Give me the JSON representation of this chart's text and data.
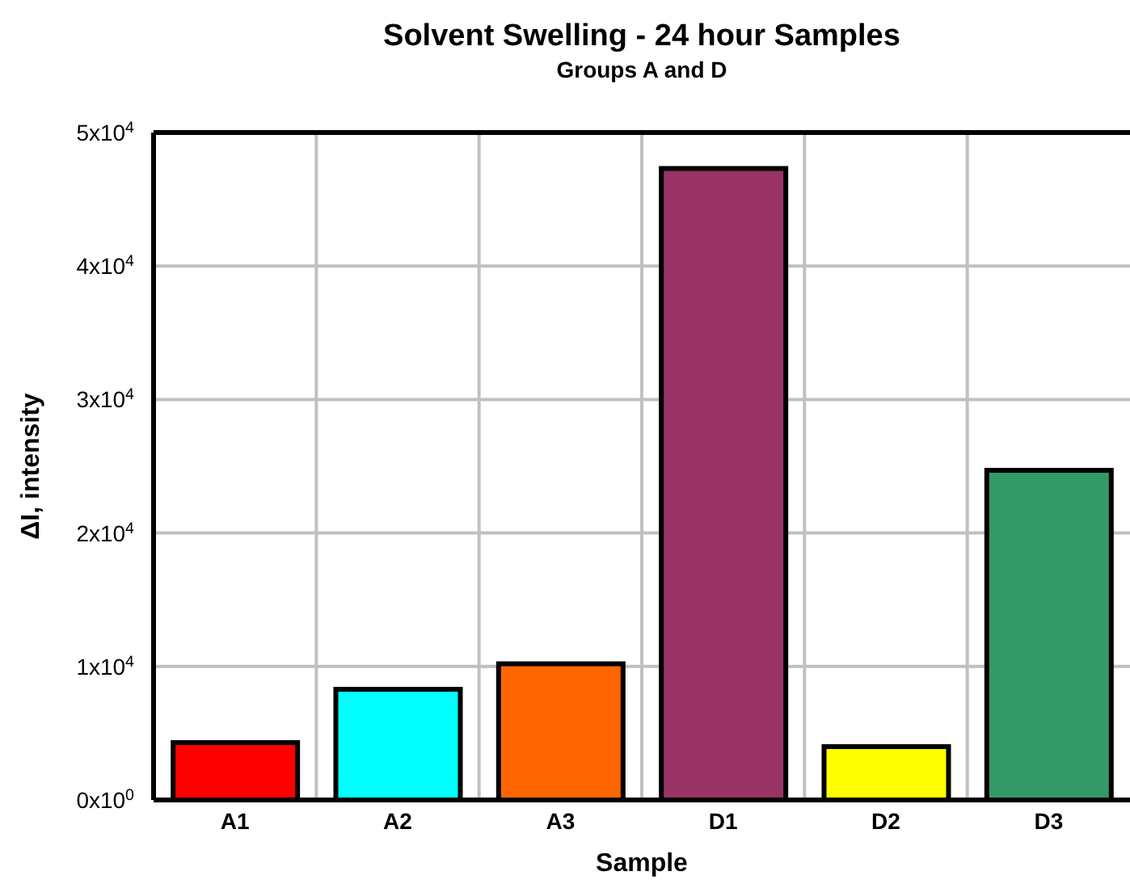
{
  "chart_data": {
    "type": "bar",
    "title": "Solvent Swelling - 24 hour Samples",
    "subtitle": "Groups A and D",
    "xlabel": "Sample",
    "ylabel": "ΔI, intensity",
    "categories": [
      "A1",
      "A2",
      "A3",
      "D1",
      "D2",
      "D3"
    ],
    "values": [
      4300,
      8300,
      10200,
      47300,
      4000,
      24700
    ],
    "colors": [
      "#ff0000",
      "#00ffff",
      "#ff6600",
      "#993366",
      "#ffff00",
      "#339966"
    ],
    "ylim": [
      0,
      50000
    ],
    "yticks": [
      {
        "value": 0,
        "label": "0x10$^{0}$"
      },
      {
        "value": 10000,
        "label": "1x10$^{4}$"
      },
      {
        "value": 20000,
        "label": "2x10$^{4}$"
      },
      {
        "value": 30000,
        "label": "3x10$^{4}$"
      },
      {
        "value": 40000,
        "label": "4x10$^{4}$"
      },
      {
        "value": 50000,
        "label": "5x10$^{4}$"
      }
    ],
    "grid": true
  }
}
